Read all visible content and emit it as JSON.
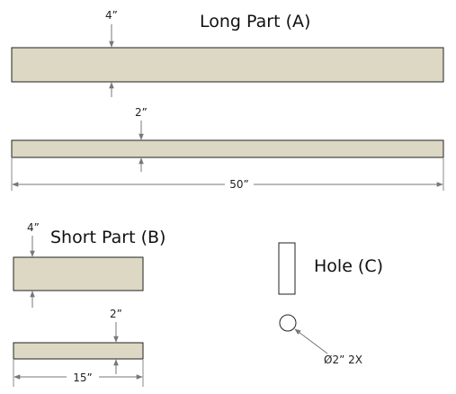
{
  "parts": {
    "long_part": {
      "title": "Long Part (A)",
      "width_label": "4”",
      "thickness_label": "2”",
      "length_label": "50”"
    },
    "short_part": {
      "title": "Short Part (B)",
      "width_label": "4”",
      "thickness_label": "2”",
      "length_label": "15”"
    },
    "hole": {
      "title": "Hole (C)",
      "diameter_label": "Ø2” 2X"
    }
  },
  "colors": {
    "wood_fill": "#dcd8c4",
    "outline": "#222222",
    "dimension_line": "#777777"
  }
}
